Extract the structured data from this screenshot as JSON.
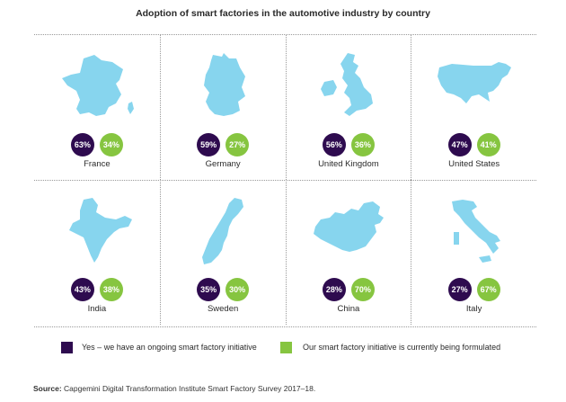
{
  "title": "Adoption of smart factories in the automotive industry by country",
  "colors": {
    "yes": "#2e0b4f",
    "formulated": "#86c540",
    "map": "#87d5ee"
  },
  "chart_data": {
    "type": "table",
    "series": [
      {
        "name": "Yes – we have an ongoing smart factory initiative",
        "key": "yes"
      },
      {
        "name": "Our smart factory initiative is currently being formulated",
        "key": "formulated"
      }
    ],
    "countries": [
      {
        "name": "France",
        "icon": "france-map-icon",
        "yes": 63,
        "yes_label": "63%",
        "formulated": 34,
        "formulated_label": "34%"
      },
      {
        "name": "Germany",
        "icon": "germany-map-icon",
        "yes": 59,
        "yes_label": "59%",
        "formulated": 27,
        "formulated_label": "27%"
      },
      {
        "name": "United Kingdom",
        "icon": "united-kingdom-map-icon",
        "yes": 56,
        "yes_label": "56%",
        "formulated": 36,
        "formulated_label": "36%"
      },
      {
        "name": "United States",
        "icon": "united-states-map-icon",
        "yes": 47,
        "yes_label": "47%",
        "formulated": 41,
        "formulated_label": "41%"
      },
      {
        "name": "India",
        "icon": "india-map-icon",
        "yes": 43,
        "yes_label": "43%",
        "formulated": 38,
        "formulated_label": "38%"
      },
      {
        "name": "Sweden",
        "icon": "sweden-map-icon",
        "yes": 35,
        "yes_label": "35%",
        "formulated": 30,
        "formulated_label": "30%"
      },
      {
        "name": "China",
        "icon": "china-map-icon",
        "yes": 28,
        "yes_label": "28%",
        "formulated": 70,
        "formulated_label": "70%"
      },
      {
        "name": "Italy",
        "icon": "italy-map-icon",
        "yes": 27,
        "yes_label": "27%",
        "formulated": 67,
        "formulated_label": "67%"
      }
    ]
  },
  "legend": {
    "yes_label": "Yes – we have an ongoing smart factory initiative",
    "formulated_label": "Our smart factory initiative is currently being formulated"
  },
  "source": {
    "prefix": "Source:",
    "text": "Capgemini Digital Transformation Institute Smart Factory Survey 2017–18."
  }
}
